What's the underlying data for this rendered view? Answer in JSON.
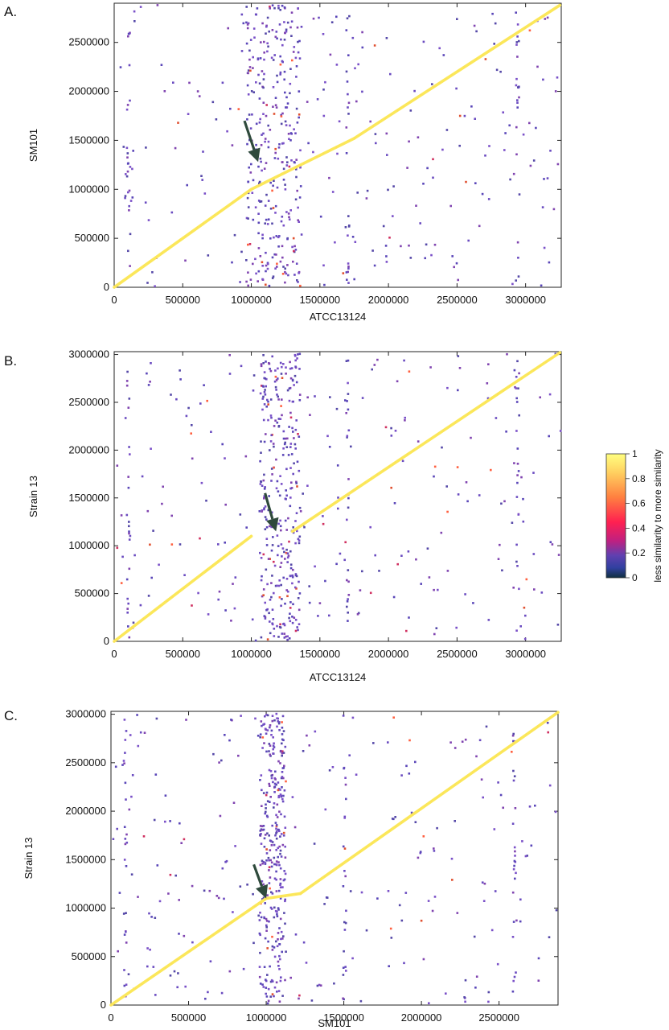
{
  "chart_data": [
    {
      "panel": "A.",
      "type": "scatter",
      "xlabel": "ATCC13124",
      "ylabel": "SM101",
      "xlim": [
        0,
        3260000
      ],
      "ylim": [
        0,
        2900000
      ],
      "xticks": [
        0,
        500000,
        1000000,
        1500000,
        2000000,
        2500000,
        3000000
      ],
      "yticks": [
        0,
        500000,
        1000000,
        1500000,
        2000000,
        2500000
      ],
      "xtick_labels": [
        "0",
        "500000",
        "1000000",
        "1500000",
        "2000000",
        "2500000",
        "3000000"
      ],
      "ytick_labels": [
        "0",
        "500000",
        "1000000",
        "1500000",
        "2000000",
        "2500000"
      ],
      "diagonal": [
        [
          0,
          0,
          1000000,
          1000000
        ],
        [
          1000000,
          1000000,
          1750000,
          1520000
        ],
        [
          1750000,
          1520000,
          3250000,
          2880000
        ]
      ],
      "hotspot_x": [
        950000,
        1350000
      ],
      "arrow": {
        "from": [
          950000,
          1700000
        ],
        "to": [
          1050000,
          1280000
        ]
      },
      "seed": 11
    },
    {
      "panel": "B.",
      "type": "scatter",
      "xlabel": "ATCC13124",
      "ylabel": "Strain 13",
      "xlim": [
        0,
        3260000
      ],
      "ylim": [
        0,
        3030000
      ],
      "xticks": [
        0,
        500000,
        1000000,
        1500000,
        2000000,
        2500000,
        3000000
      ],
      "yticks": [
        0,
        500000,
        1000000,
        1500000,
        2000000,
        2500000,
        3000000
      ],
      "xtick_labels": [
        "0",
        "500000",
        "1000000",
        "1500000",
        "2000000",
        "2500000",
        "3000000"
      ],
      "ytick_labels": [
        "0",
        "500000",
        "1000000",
        "1500000",
        "2000000",
        "2500000",
        "3000000"
      ],
      "diagonal": [
        [
          0,
          0,
          1000000,
          1100000
        ],
        [
          1300000,
          1150000,
          3250000,
          3020000
        ]
      ],
      "hotspot_x": [
        1050000,
        1350000
      ],
      "arrow": {
        "from": [
          1100000,
          1550000
        ],
        "to": [
          1180000,
          1150000
        ]
      },
      "seed": 23
    },
    {
      "panel": "C.",
      "type": "scatter",
      "xlabel": "SM101",
      "ylabel": "Strain 13",
      "xlim": [
        0,
        2880000
      ],
      "ylim": [
        0,
        3030000
      ],
      "xticks": [
        0,
        500000,
        1000000,
        1500000,
        2000000,
        2500000
      ],
      "yticks": [
        0,
        500000,
        1000000,
        1500000,
        2000000,
        2500000,
        3000000
      ],
      "xtick_labels": [
        "0",
        "500000",
        "1000000",
        "1500000",
        "2000000",
        "2500000"
      ],
      "ytick_labels": [
        "0",
        "500000",
        "1000000",
        "1500000",
        "2000000",
        "2500000",
        "3000000"
      ],
      "diagonal": [
        [
          0,
          0,
          1000000,
          1100000
        ],
        [
          1000000,
          1100000,
          1220000,
          1150000
        ],
        [
          1220000,
          1150000,
          2880000,
          3020000
        ]
      ],
      "hotspot_x": [
        950000,
        1120000
      ],
      "arrow": {
        "from": [
          920000,
          1450000
        ],
        "to": [
          1000000,
          1100000
        ]
      },
      "seed": 37
    }
  ],
  "colorbar": {
    "label": "less similarity to more similarity",
    "ticks": [
      "1",
      "0.8",
      "0.6",
      "0.4",
      "0.2",
      "0"
    ],
    "colors": [
      "#ffff80",
      "#ffd060",
      "#ff8040",
      "#ff2050",
      "#c02080",
      "#6040b0",
      "#3040a0",
      "#103040"
    ]
  }
}
